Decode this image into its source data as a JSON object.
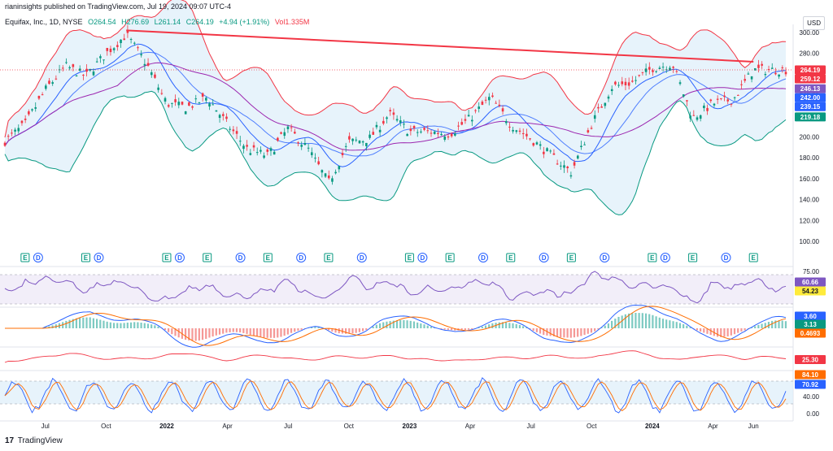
{
  "header": {
    "publisher": "rianinsights published on TradingView.com, Jul 19, 2024 09:07 UTC-4",
    "symbol": "Equifax, Inc., 1D, NYSE",
    "open": "O264.54",
    "high": "H276.69",
    "low": "L261.14",
    "close": "C264.19",
    "change": "+4.94 (+1.91%)",
    "volume": "Vol1.335M",
    "currency": "USD"
  },
  "footer": {
    "brand_mark": "17",
    "brand": "TradingView"
  },
  "colors": {
    "candle_up": "#089981",
    "candle_down": "#f23645",
    "bb_band": "#f23645",
    "bb_fill": "#ddeefa",
    "bb_lower": "#089981",
    "ma_fast": "#2962ff",
    "ma_mid": "#2962ff",
    "ma_slow": "#9c27b0",
    "trendline": "#f23645",
    "rsi": "#7e57c2",
    "rsi_ma": "#f5c26b",
    "macd": "#2962ff",
    "signal": "#ff6d00",
    "stoch_k": "#2962ff",
    "stoch_d": "#ff6d00"
  },
  "chart_data": {
    "type": "line",
    "x_ticks": [
      "Jul",
      "Oct",
      "2022",
      "Apr",
      "Jul",
      "Oct",
      "2023",
      "Apr",
      "Jul",
      "Oct",
      "2024",
      "Apr",
      "Jun"
    ],
    "price_axis": {
      "ticks": [
        "300.00",
        "280.00",
        "260.00",
        "240.00",
        "220.00",
        "200.00",
        "180.00",
        "160.00",
        "140.00",
        "120.00",
        "100.00"
      ],
      "ylim": [
        100,
        305
      ]
    },
    "price_series": [
      [
        "Jun 2021",
        196
      ],
      [
        "Jul 2021",
        212
      ],
      [
        "Aug 2021",
        245
      ],
      [
        "Sep 2021",
        268
      ],
      [
        "Oct 2021",
        258
      ],
      [
        "Nov 2021",
        280
      ],
      [
        "Dec 2021",
        298
      ],
      [
        "Jan 2022",
        270
      ],
      [
        "Feb 2022",
        232
      ],
      [
        "Mar 2022",
        228
      ],
      [
        "Apr 2022",
        238
      ],
      [
        "May 2022",
        212
      ],
      [
        "Jun 2022",
        188
      ],
      [
        "Jul 2022",
        182
      ],
      [
        "Aug 2022",
        208
      ],
      [
        "Sep 2022",
        188
      ],
      [
        "Oct 2022",
        156
      ],
      [
        "Nov 2022",
        195
      ],
      [
        "Dec 2022",
        198
      ],
      [
        "Jan 2023",
        222
      ],
      [
        "Feb 2023",
        205
      ],
      [
        "Mar 2023",
        205
      ],
      [
        "Apr 2023",
        203
      ],
      [
        "May 2023",
        218
      ],
      [
        "Jun 2023",
        238
      ],
      [
        "Jul 2023",
        212
      ],
      [
        "Aug 2023",
        198
      ],
      [
        "Sep 2023",
        182
      ],
      [
        "Oct 2023",
        166
      ],
      [
        "Nov 2023",
        212
      ],
      [
        "Dec 2023",
        248
      ],
      [
        "Jan 2024",
        252
      ],
      [
        "Feb 2024",
        266
      ],
      [
        "Mar 2024",
        270
      ],
      [
        "Apr 2024",
        218
      ],
      [
        "May 2024",
        232
      ],
      [
        "Jun 2024",
        236
      ],
      [
        "Jul 2024",
        264.19
      ]
    ],
    "trendline": {
      "from": [
        "Dec 2021",
        302
      ],
      "to": [
        "Jul 2024",
        272
      ]
    },
    "price_labels": [
      {
        "value": "264.19",
        "color": "#f23645"
      },
      {
        "value": "259.12",
        "color": "#f23645"
      },
      {
        "value": "246.13",
        "color": "#7e57c2"
      },
      {
        "value": "242.00",
        "color": "#2962ff"
      },
      {
        "value": "239.15",
        "color": "#2962ff"
      },
      {
        "value": "219.18",
        "color": "#089981"
      }
    ],
    "events": [
      {
        "x": "Jul 2021",
        "type": "E"
      },
      {
        "x": "Jul 2021",
        "type": "D"
      },
      {
        "x": "Oct 2021",
        "type": "E"
      },
      {
        "x": "Oct 2021",
        "type": "D"
      },
      {
        "x": "Feb 2022",
        "type": "E"
      },
      {
        "x": "Feb 2022",
        "type": "D"
      },
      {
        "x": "Apr 2022",
        "type": "E"
      },
      {
        "x": "May 2022",
        "type": "D"
      },
      {
        "x": "Jul 2022",
        "type": "E"
      },
      {
        "x": "Aug 2022",
        "type": "D"
      },
      {
        "x": "Oct 2022",
        "type": "E"
      },
      {
        "x": "Nov 2022",
        "type": "D"
      },
      {
        "x": "Feb 2023",
        "type": "E"
      },
      {
        "x": "Feb 2023",
        "type": "D"
      },
      {
        "x": "Apr 2023",
        "type": "E"
      },
      {
        "x": "May 2023",
        "type": "D"
      },
      {
        "x": "Jul 2023",
        "type": "E"
      },
      {
        "x": "Aug 2023",
        "type": "D"
      },
      {
        "x": "Oct 2023",
        "type": "E"
      },
      {
        "x": "Nov 2023",
        "type": "D"
      },
      {
        "x": "Feb 2024",
        "type": "E"
      },
      {
        "x": "Feb 2024",
        "type": "D"
      },
      {
        "x": "Apr 2024",
        "type": "E"
      },
      {
        "x": "May 2024",
        "type": "D"
      },
      {
        "x": "Jul 2024",
        "type": "E"
      }
    ],
    "rsi": {
      "axis_tick": "75.00",
      "last": "60.66",
      "ma_last": "54.23"
    },
    "macd": {
      "last": "3.60",
      "signal_last": "3.13",
      "hist_last": "0.4693"
    },
    "atr": {
      "last": "25.30"
    },
    "stoch": {
      "ticks": [
        "80.00",
        "40.00",
        "0.00"
      ],
      "k_last": "84.10",
      "d_last": "70.92"
    }
  }
}
